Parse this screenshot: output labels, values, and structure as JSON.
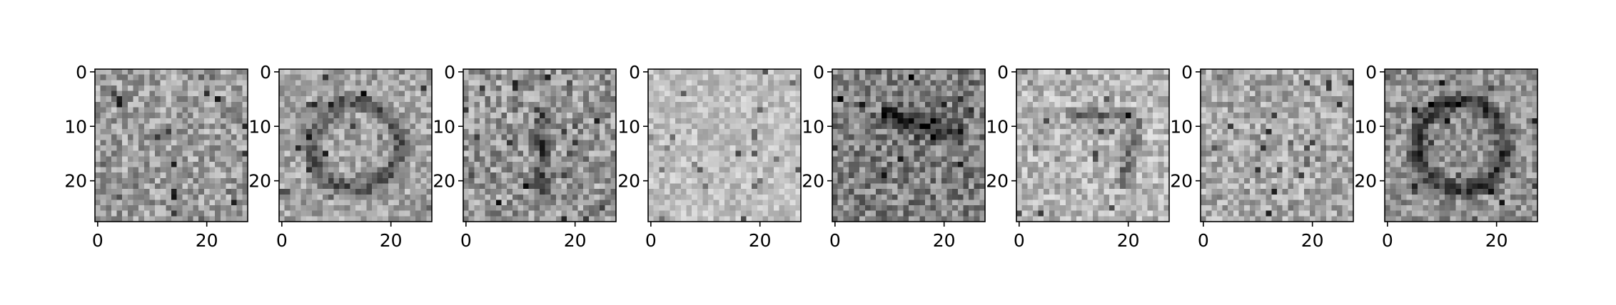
{
  "chart_data": {
    "type": "heatmap",
    "colormap": "gray",
    "grid": false,
    "panel_count": 8,
    "image_size": [
      28,
      28
    ],
    "x_range": [
      -0.5,
      27.5
    ],
    "y_range": [
      27.5,
      -0.5
    ],
    "x_ticks": [
      0,
      20
    ],
    "y_ticks": [
      0,
      10,
      20
    ],
    "x_tick_labels": [
      "0",
      "20"
    ],
    "y_tick_labels": [
      "0",
      "10",
      "20"
    ],
    "panels": [
      {
        "mean_gray": 0.62,
        "contrast": 0.2,
        "dark_strength": 0.45,
        "shape": "none"
      },
      {
        "mean_gray": 0.65,
        "contrast": 0.17,
        "dark_strength": 0.35,
        "shape": "ring"
      },
      {
        "mean_gray": 0.6,
        "contrast": 0.22,
        "dark_strength": 0.3,
        "shape": "vertical"
      },
      {
        "mean_gray": 0.75,
        "contrast": 0.13,
        "dark_strength": 0.2,
        "shape": "none"
      },
      {
        "mean_gray": 0.5,
        "contrast": 0.22,
        "dark_strength": 0.35,
        "shape": "diagonal"
      },
      {
        "mean_gray": 0.72,
        "contrast": 0.17,
        "dark_strength": 0.3,
        "shape": "seven"
      },
      {
        "mean_gray": 0.66,
        "contrast": 0.19,
        "dark_strength": 0.25,
        "shape": "none"
      },
      {
        "mean_gray": 0.58,
        "contrast": 0.18,
        "dark_strength": 0.4,
        "shape": "ring"
      }
    ]
  }
}
